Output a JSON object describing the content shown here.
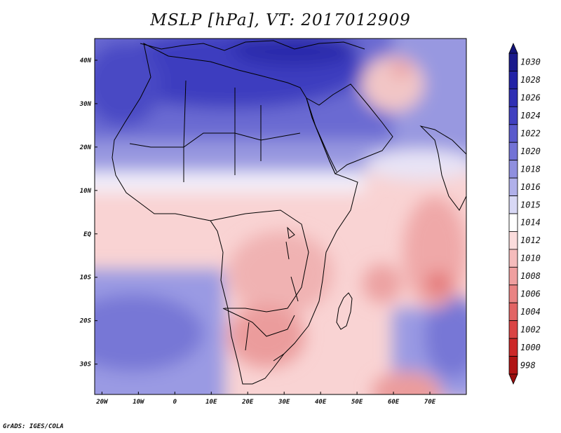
{
  "title": "MSLP [hPa], VT: 2017012909",
  "footer": "GrADS: IGES/COLA",
  "map": {
    "lon_range": [
      -22,
      80
    ],
    "lat_range": [
      -37,
      45
    ],
    "lon_ticks": [
      {
        "lon": -20,
        "label": "20W"
      },
      {
        "lon": -10,
        "label": "10W"
      },
      {
        "lon": 0,
        "label": "0"
      },
      {
        "lon": 10,
        "label": "10E"
      },
      {
        "lon": 20,
        "label": "20E"
      },
      {
        "lon": 30,
        "label": "30E"
      },
      {
        "lon": 40,
        "label": "40E"
      },
      {
        "lon": 50,
        "label": "50E"
      },
      {
        "lon": 60,
        "label": "60E"
      },
      {
        "lon": 70,
        "label": "70E"
      }
    ],
    "lat_ticks": [
      {
        "lat": 40,
        "label": "40N"
      },
      {
        "lat": 30,
        "label": "30N"
      },
      {
        "lat": 20,
        "label": "20N"
      },
      {
        "lat": 10,
        "label": "10N"
      },
      {
        "lat": 0,
        "label": "EQ"
      },
      {
        "lat": -10,
        "label": "10S"
      },
      {
        "lat": -20,
        "label": "20S"
      },
      {
        "lat": -30,
        "label": "30S"
      }
    ]
  },
  "colorbar": [
    {
      "label": "1030",
      "color": "#1a1a8c"
    },
    {
      "label": "1028",
      "color": "#2323a6"
    },
    {
      "label": "1026",
      "color": "#2f2fb4"
    },
    {
      "label": "1024",
      "color": "#4040c0"
    },
    {
      "label": "1022",
      "color": "#5a5acc"
    },
    {
      "label": "1020",
      "color": "#7373d6"
    },
    {
      "label": "1018",
      "color": "#8f8fdf"
    },
    {
      "label": "1016",
      "color": "#b0b0ea"
    },
    {
      "label": "1015",
      "color": "#d8d8f5"
    },
    {
      "label": "1014",
      "color": "#ffffff"
    },
    {
      "label": "1012",
      "color": "#fbdcdc"
    },
    {
      "label": "1010",
      "color": "#f5bcbc"
    },
    {
      "label": "1008",
      "color": "#ef9f9f"
    },
    {
      "label": "1006",
      "color": "#e98383"
    },
    {
      "label": "1004",
      "color": "#e26464"
    },
    {
      "label": "1002",
      "color": "#da4444"
    },
    {
      "label": "1000",
      "color": "#cc2828"
    },
    {
      "label": "998",
      "color": "#b01414"
    }
  ],
  "colorbar_extremes": {
    "top_color": "#14147a",
    "bottom_color": "#9a0e0e"
  }
}
